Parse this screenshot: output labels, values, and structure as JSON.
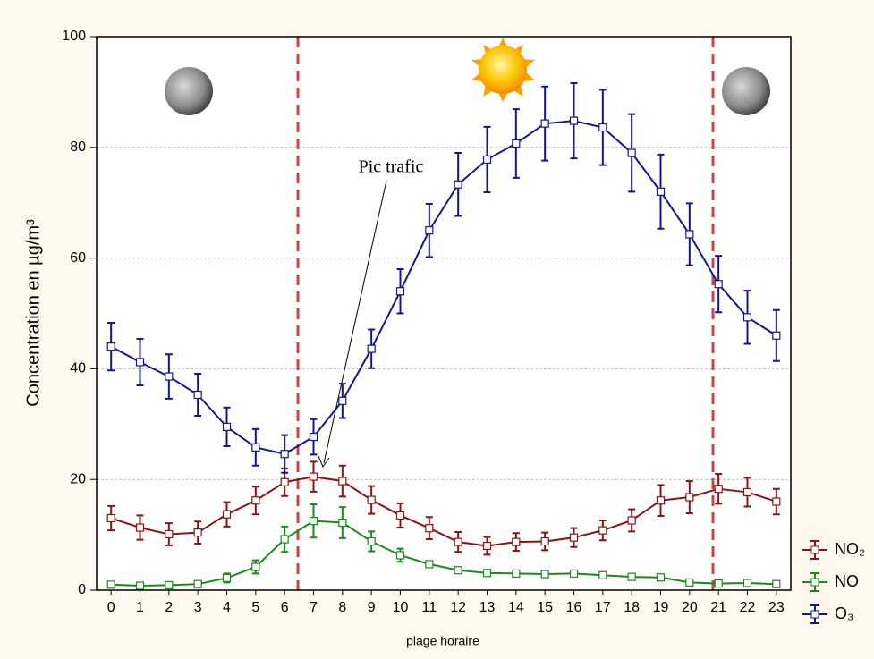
{
  "chart_data": {
    "type": "line",
    "x_label": "plage horaire",
    "y_label": "Concentration en µg/m³",
    "annotation": "Pic trafic",
    "categories": [
      "0",
      "1",
      "2",
      "3",
      "4",
      "5",
      "6",
      "7",
      "8",
      "9",
      "10",
      "11",
      "12",
      "13",
      "14",
      "15",
      "16",
      "17",
      "18",
      "19",
      "20",
      "21",
      "22",
      "23"
    ],
    "ylim": [
      0,
      100
    ],
    "yticks": [
      0,
      20,
      40,
      60,
      80,
      100
    ],
    "grid": true,
    "legend_position": "right",
    "series": [
      {
        "name": "NO₂",
        "color": "#8b1414",
        "values": [
          13,
          11.3,
          10.1,
          10.4,
          13.7,
          16.2,
          19.5,
          20.5,
          19.7,
          16.3,
          13.5,
          11.2,
          8.7,
          8,
          8.7,
          8.8,
          9.5,
          10.8,
          12.6,
          16.2,
          16.8,
          18.3,
          17.7,
          16
        ],
        "errors": [
          2.2,
          2.2,
          2,
          2,
          2.2,
          2.5,
          2.5,
          2.7,
          2.8,
          2.5,
          2.2,
          2,
          1.8,
          1.6,
          1.6,
          1.6,
          1.7,
          1.8,
          2,
          2.8,
          2.9,
          2.7,
          2.6,
          2.3
        ]
      },
      {
        "name": "NO",
        "color": "#1a8a1a",
        "values": [
          1,
          0.8,
          0.9,
          1.1,
          2.2,
          4.2,
          9.2,
          12.5,
          12.2,
          8.8,
          6.3,
          4.7,
          3.6,
          3.1,
          3,
          2.9,
          3,
          2.7,
          2.4,
          2.3,
          1.4,
          1.2,
          1.3,
          1.1
        ],
        "errors": [
          0.3,
          0.3,
          0.3,
          0.3,
          0.8,
          1.2,
          2.3,
          3,
          2.8,
          1.8,
          1.2,
          0.5,
          0.4,
          0.3,
          0.3,
          0.3,
          0.3,
          0.3,
          0.3,
          0.3,
          0.2,
          0.2,
          0.2,
          0.2
        ]
      },
      {
        "name": "O₃",
        "color": "#16168c",
        "values": [
          44,
          41.2,
          38.6,
          35.3,
          29.5,
          25.8,
          24.6,
          27.7,
          34.2,
          43.6,
          54,
          65,
          73.3,
          77.8,
          80.7,
          84.3,
          84.8,
          83.6,
          79,
          72,
          64.3,
          55.3,
          49.3,
          46
        ],
        "errors": [
          4.3,
          4.2,
          4,
          3.8,
          3.5,
          3.3,
          3.4,
          3.2,
          3.1,
          3.5,
          4,
          4.8,
          5.7,
          5.9,
          6.2,
          6.7,
          6.8,
          6.8,
          7,
          6.7,
          5.6,
          5.1,
          4.8,
          4.6
        ]
      }
    ]
  }
}
